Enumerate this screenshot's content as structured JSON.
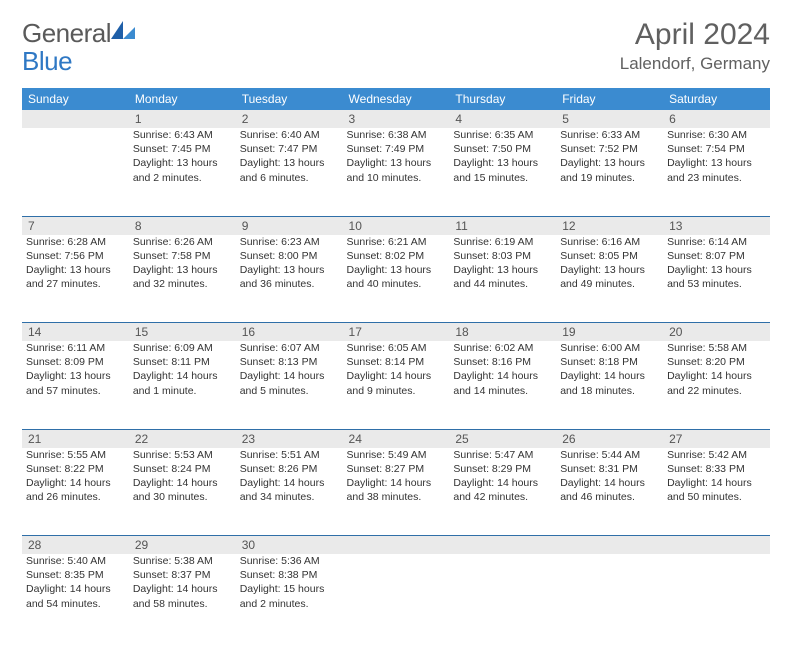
{
  "brand": {
    "name1": "General",
    "name2": "Blue"
  },
  "title": "April 2024",
  "location": "Lalendorf, Germany",
  "colors": {
    "header_bg": "#3b8bd0",
    "header_text": "#ffffff",
    "daynum_bg": "#eaeaea",
    "text": "#333333",
    "rule": "#2f6fa8",
    "title_color": "#606060",
    "logo_gray": "#5a5a5a",
    "logo_blue": "#2f78c4"
  },
  "typography": {
    "title_fontsize": 30,
    "location_fontsize": 17,
    "dayhead_fontsize": 12,
    "cell_fontsize": 10.5
  },
  "day_names": [
    "Sunday",
    "Monday",
    "Tuesday",
    "Wednesday",
    "Thursday",
    "Friday",
    "Saturday"
  ],
  "weeks": [
    [
      null,
      {
        "n": "1",
        "sr": "Sunrise: 6:43 AM",
        "ss": "Sunset: 7:45 PM",
        "d1": "Daylight: 13 hours",
        "d2": "and 2 minutes."
      },
      {
        "n": "2",
        "sr": "Sunrise: 6:40 AM",
        "ss": "Sunset: 7:47 PM",
        "d1": "Daylight: 13 hours",
        "d2": "and 6 minutes."
      },
      {
        "n": "3",
        "sr": "Sunrise: 6:38 AM",
        "ss": "Sunset: 7:49 PM",
        "d1": "Daylight: 13 hours",
        "d2": "and 10 minutes."
      },
      {
        "n": "4",
        "sr": "Sunrise: 6:35 AM",
        "ss": "Sunset: 7:50 PM",
        "d1": "Daylight: 13 hours",
        "d2": "and 15 minutes."
      },
      {
        "n": "5",
        "sr": "Sunrise: 6:33 AM",
        "ss": "Sunset: 7:52 PM",
        "d1": "Daylight: 13 hours",
        "d2": "and 19 minutes."
      },
      {
        "n": "6",
        "sr": "Sunrise: 6:30 AM",
        "ss": "Sunset: 7:54 PM",
        "d1": "Daylight: 13 hours",
        "d2": "and 23 minutes."
      }
    ],
    [
      {
        "n": "7",
        "sr": "Sunrise: 6:28 AM",
        "ss": "Sunset: 7:56 PM",
        "d1": "Daylight: 13 hours",
        "d2": "and 27 minutes."
      },
      {
        "n": "8",
        "sr": "Sunrise: 6:26 AM",
        "ss": "Sunset: 7:58 PM",
        "d1": "Daylight: 13 hours",
        "d2": "and 32 minutes."
      },
      {
        "n": "9",
        "sr": "Sunrise: 6:23 AM",
        "ss": "Sunset: 8:00 PM",
        "d1": "Daylight: 13 hours",
        "d2": "and 36 minutes."
      },
      {
        "n": "10",
        "sr": "Sunrise: 6:21 AM",
        "ss": "Sunset: 8:02 PM",
        "d1": "Daylight: 13 hours",
        "d2": "and 40 minutes."
      },
      {
        "n": "11",
        "sr": "Sunrise: 6:19 AM",
        "ss": "Sunset: 8:03 PM",
        "d1": "Daylight: 13 hours",
        "d2": "and 44 minutes."
      },
      {
        "n": "12",
        "sr": "Sunrise: 6:16 AM",
        "ss": "Sunset: 8:05 PM",
        "d1": "Daylight: 13 hours",
        "d2": "and 49 minutes."
      },
      {
        "n": "13",
        "sr": "Sunrise: 6:14 AM",
        "ss": "Sunset: 8:07 PM",
        "d1": "Daylight: 13 hours",
        "d2": "and 53 minutes."
      }
    ],
    [
      {
        "n": "14",
        "sr": "Sunrise: 6:11 AM",
        "ss": "Sunset: 8:09 PM",
        "d1": "Daylight: 13 hours",
        "d2": "and 57 minutes."
      },
      {
        "n": "15",
        "sr": "Sunrise: 6:09 AM",
        "ss": "Sunset: 8:11 PM",
        "d1": "Daylight: 14 hours",
        "d2": "and 1 minute."
      },
      {
        "n": "16",
        "sr": "Sunrise: 6:07 AM",
        "ss": "Sunset: 8:13 PM",
        "d1": "Daylight: 14 hours",
        "d2": "and 5 minutes."
      },
      {
        "n": "17",
        "sr": "Sunrise: 6:05 AM",
        "ss": "Sunset: 8:14 PM",
        "d1": "Daylight: 14 hours",
        "d2": "and 9 minutes."
      },
      {
        "n": "18",
        "sr": "Sunrise: 6:02 AM",
        "ss": "Sunset: 8:16 PM",
        "d1": "Daylight: 14 hours",
        "d2": "and 14 minutes."
      },
      {
        "n": "19",
        "sr": "Sunrise: 6:00 AM",
        "ss": "Sunset: 8:18 PM",
        "d1": "Daylight: 14 hours",
        "d2": "and 18 minutes."
      },
      {
        "n": "20",
        "sr": "Sunrise: 5:58 AM",
        "ss": "Sunset: 8:20 PM",
        "d1": "Daylight: 14 hours",
        "d2": "and 22 minutes."
      }
    ],
    [
      {
        "n": "21",
        "sr": "Sunrise: 5:55 AM",
        "ss": "Sunset: 8:22 PM",
        "d1": "Daylight: 14 hours",
        "d2": "and 26 minutes."
      },
      {
        "n": "22",
        "sr": "Sunrise: 5:53 AM",
        "ss": "Sunset: 8:24 PM",
        "d1": "Daylight: 14 hours",
        "d2": "and 30 minutes."
      },
      {
        "n": "23",
        "sr": "Sunrise: 5:51 AM",
        "ss": "Sunset: 8:26 PM",
        "d1": "Daylight: 14 hours",
        "d2": "and 34 minutes."
      },
      {
        "n": "24",
        "sr": "Sunrise: 5:49 AM",
        "ss": "Sunset: 8:27 PM",
        "d1": "Daylight: 14 hours",
        "d2": "and 38 minutes."
      },
      {
        "n": "25",
        "sr": "Sunrise: 5:47 AM",
        "ss": "Sunset: 8:29 PM",
        "d1": "Daylight: 14 hours",
        "d2": "and 42 minutes."
      },
      {
        "n": "26",
        "sr": "Sunrise: 5:44 AM",
        "ss": "Sunset: 8:31 PM",
        "d1": "Daylight: 14 hours",
        "d2": "and 46 minutes."
      },
      {
        "n": "27",
        "sr": "Sunrise: 5:42 AM",
        "ss": "Sunset: 8:33 PM",
        "d1": "Daylight: 14 hours",
        "d2": "and 50 minutes."
      }
    ],
    [
      {
        "n": "28",
        "sr": "Sunrise: 5:40 AM",
        "ss": "Sunset: 8:35 PM",
        "d1": "Daylight: 14 hours",
        "d2": "and 54 minutes."
      },
      {
        "n": "29",
        "sr": "Sunrise: 5:38 AM",
        "ss": "Sunset: 8:37 PM",
        "d1": "Daylight: 14 hours",
        "d2": "and 58 minutes."
      },
      {
        "n": "30",
        "sr": "Sunrise: 5:36 AM",
        "ss": "Sunset: 8:38 PM",
        "d1": "Daylight: 15 hours",
        "d2": "and 2 minutes."
      },
      null,
      null,
      null,
      null
    ]
  ]
}
